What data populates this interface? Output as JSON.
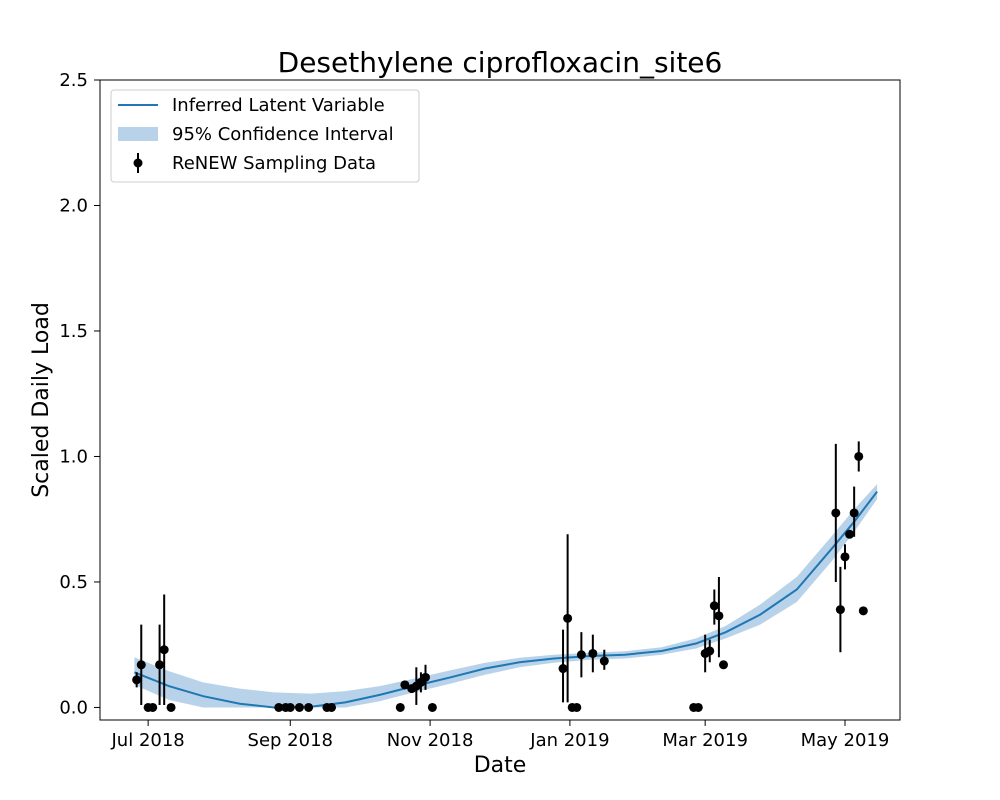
{
  "chart_data": {
    "type": "line",
    "title": "Desethylene ciprofloxacin_site6",
    "xlabel": "Date",
    "ylabel": "Scaled Daily Load",
    "xlim": [
      "2018-06-10",
      "2019-05-25"
    ],
    "ylim": [
      -0.05,
      2.5
    ],
    "x_ticks": [
      "2018-07-01",
      "2018-09-01",
      "2018-11-01",
      "2019-01-01",
      "2019-03-01",
      "2019-05-01"
    ],
    "x_tick_labels": [
      "Jul 2018",
      "Sep 2018",
      "Nov 2018",
      "Jan 2019",
      "Mar 2019",
      "May 2019"
    ],
    "y_ticks": [
      0.0,
      0.5,
      1.0,
      1.5,
      2.0,
      2.5
    ],
    "y_tick_labels": [
      "0.0",
      "0.5",
      "1.0",
      "1.5",
      "2.0",
      "2.5"
    ],
    "legend_position": "top-left",
    "grid": false,
    "colors": {
      "line": "#1f77b4",
      "band": "#a6c8e3",
      "points": "#000000"
    },
    "series": [
      {
        "name": "Inferred Latent Variable",
        "kind": "line",
        "x": [
          "2018-06-25",
          "2018-07-10",
          "2018-07-25",
          "2018-08-10",
          "2018-08-25",
          "2018-09-10",
          "2018-09-25",
          "2018-10-10",
          "2018-10-25",
          "2018-11-10",
          "2018-11-25",
          "2018-12-10",
          "2018-12-25",
          "2019-01-10",
          "2019-01-25",
          "2019-02-10",
          "2019-02-25",
          "2019-03-10",
          "2019-03-25",
          "2019-04-10",
          "2019-04-25",
          "2019-05-05",
          "2019-05-15"
        ],
        "y": [
          0.14,
          0.085,
          0.045,
          0.015,
          0.0,
          0.003,
          0.02,
          0.05,
          0.085,
          0.12,
          0.155,
          0.18,
          0.195,
          0.205,
          0.21,
          0.225,
          0.255,
          0.3,
          0.37,
          0.47,
          0.63,
          0.74,
          0.86
        ]
      },
      {
        "name": "95% Confidence Interval",
        "kind": "band",
        "x": [
          "2018-06-25",
          "2018-07-10",
          "2018-07-25",
          "2018-08-10",
          "2018-08-25",
          "2018-09-10",
          "2018-09-25",
          "2018-10-10",
          "2018-10-25",
          "2018-11-10",
          "2018-11-25",
          "2018-12-10",
          "2018-12-25",
          "2019-01-10",
          "2019-01-25",
          "2019-02-10",
          "2019-02-25",
          "2019-03-10",
          "2019-03-25",
          "2019-04-10",
          "2019-04-25",
          "2019-05-05",
          "2019-05-15"
        ],
        "lower": [
          0.09,
          0.03,
          0.0,
          0.0,
          0.0,
          0.0,
          0.0,
          0.025,
          0.06,
          0.095,
          0.13,
          0.16,
          0.178,
          0.19,
          0.195,
          0.21,
          0.235,
          0.275,
          0.33,
          0.42,
          0.58,
          0.7,
          0.83
        ],
        "upper": [
          0.2,
          0.145,
          0.1,
          0.075,
          0.06,
          0.055,
          0.065,
          0.085,
          0.115,
          0.148,
          0.178,
          0.198,
          0.21,
          0.218,
          0.224,
          0.24,
          0.275,
          0.325,
          0.41,
          0.52,
          0.68,
          0.79,
          0.89
        ]
      },
      {
        "name": "ReNEW Sampling Data",
        "kind": "errorbar",
        "x": [
          "2018-06-26",
          "2018-06-28",
          "2018-07-01",
          "2018-07-03",
          "2018-07-06",
          "2018-07-08",
          "2018-07-11",
          "2018-08-27",
          "2018-08-30",
          "2018-09-01",
          "2018-09-05",
          "2018-09-09",
          "2018-09-17",
          "2018-09-19",
          "2018-10-19",
          "2018-10-21",
          "2018-10-24",
          "2018-10-26",
          "2018-10-28",
          "2018-10-30",
          "2018-11-02",
          "2018-12-29",
          "2018-12-31",
          "2019-01-02",
          "2019-01-04",
          "2019-01-06",
          "2019-01-11",
          "2019-01-16"
        ],
        "y": [
          0.11,
          0.17,
          0.0,
          0.0,
          0.17,
          0.23,
          0.0,
          0.0,
          0.0,
          0.0,
          0.0,
          0.0,
          0.0,
          0.0,
          0.0,
          0.09,
          0.075,
          0.085,
          0.1,
          0.12,
          0.0,
          0.155,
          0.355,
          0.0,
          0.0,
          0.21,
          0.215,
          0.185
        ],
        "err_low": [
          0.08,
          0.01,
          0.0,
          0.0,
          0.01,
          0.01,
          0.0,
          0.0,
          0.0,
          0.0,
          0.0,
          0.0,
          0.0,
          0.0,
          0.0,
          0.09,
          0.06,
          0.01,
          0.06,
          0.07,
          0.0,
          0.02,
          0.02,
          0.0,
          0.0,
          0.12,
          0.14,
          0.15
        ],
        "err_high": [
          0.14,
          0.33,
          0.0,
          0.0,
          0.33,
          0.45,
          0.0,
          0.0,
          0.0,
          0.0,
          0.0,
          0.0,
          0.0,
          0.0,
          0.0,
          0.09,
          0.09,
          0.16,
          0.14,
          0.17,
          0.0,
          0.31,
          0.69,
          0.0,
          0.0,
          0.3,
          0.29,
          0.23
        ]
      }
    ],
    "extra_points": {
      "x": [
        "2019-02-24",
        "2019-02-26",
        "2019-03-01",
        "2019-03-03",
        "2019-03-05",
        "2019-03-07",
        "2019-03-09",
        "2019-04-27",
        "2019-04-29",
        "2019-05-01",
        "2019-05-03",
        "2019-05-05",
        "2019-05-07",
        "2019-05-09"
      ],
      "y": [
        0.0,
        0.0,
        0.215,
        0.225,
        0.405,
        0.365,
        0.17,
        0.775,
        0.39,
        0.6,
        0.69,
        0.775,
        1.0,
        0.385
      ],
      "err_low": [
        0.0,
        0.0,
        0.14,
        0.18,
        0.33,
        0.2,
        0.16,
        0.5,
        0.22,
        0.55,
        0.69,
        0.68,
        0.94,
        0.385
      ],
      "err_high": [
        0.0,
        0.0,
        0.29,
        0.27,
        0.47,
        0.52,
        0.18,
        1.05,
        0.56,
        0.65,
        0.69,
        0.88,
        1.06,
        0.385
      ]
    }
  }
}
